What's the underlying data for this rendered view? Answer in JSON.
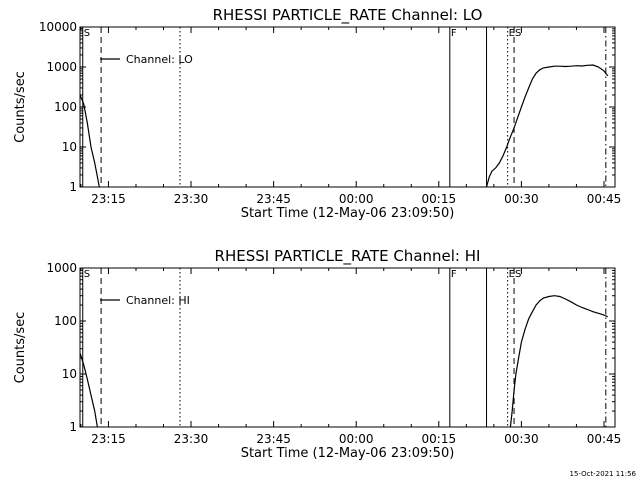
{
  "footer": {
    "timestamp": "15-Oct-2021 11:56"
  },
  "chart_data": [
    {
      "type": "line",
      "title": "RHESSI PARTICLE_RATE Channel: LO",
      "xlabel": "Start Time (12-May-06 23:09:50)",
      "ylabel": "Counts/sec",
      "y_scale": "log",
      "ylim": [
        1,
        10000
      ],
      "xlim": [
        "23:09:50",
        "00:47:00"
      ],
      "x_ticks": [
        "23:15",
        "23:30",
        "23:45",
        "00:00",
        "00:15",
        "00:30",
        "00:45"
      ],
      "y_ticks": [
        "1",
        "10",
        "100",
        "1000",
        "10000"
      ],
      "legend": {
        "position": "top-left",
        "entries": [
          "Channel: LO"
        ]
      },
      "markers": [
        {
          "label": "S",
          "time": "23:10:20",
          "style": "solid"
        },
        {
          "label": "",
          "time": "23:13:40",
          "style": "dashed"
        },
        {
          "label": "",
          "time": "23:28:00",
          "style": "dotted"
        },
        {
          "label": "F",
          "time": "00:17:00",
          "style": "solid"
        },
        {
          "label": "",
          "time": "00:23:40",
          "style": "solid"
        },
        {
          "label": "E",
          "time": "00:27:30",
          "style": "dotted"
        },
        {
          "label": "S",
          "time": "00:28:40",
          "style": "dashed"
        },
        {
          "label": "",
          "time": "00:45:20",
          "style": "dashdot"
        }
      ],
      "series": [
        {
          "name": "Channel: LO",
          "segments": [
            {
              "x": [
                "23:09:50",
                "23:10:30",
                "23:11:10",
                "23:11:50",
                "23:12:30",
                "23:13:00",
                "23:13:20"
              ],
              "y": [
                200,
                120,
                40,
                10,
                4,
                1.8,
                1
              ]
            },
            {
              "x": [
                "00:23:40",
                "00:24:10",
                "00:24:40",
                "00:25:20",
                "00:26:00",
                "00:26:40",
                "00:27:20",
                "00:28:00",
                "00:28:40",
                "00:29:20",
                "00:30:00",
                "00:30:40",
                "00:31:20",
                "00:32:00",
                "00:32:40",
                "00:33:20",
                "00:34:00",
                "00:35:00",
                "00:36:00",
                "00:37:00",
                "00:38:00",
                "00:39:00",
                "00:40:00",
                "00:41:00",
                "00:42:00",
                "00:43:00",
                "00:44:00",
                "00:45:00",
                "00:45:40"
              ],
              "y": [
                1,
                1.8,
                2.5,
                3,
                4,
                6,
                10,
                18,
                30,
                55,
                100,
                180,
                300,
                500,
                700,
                850,
                950,
                1000,
                1050,
                1050,
                1030,
                1050,
                1080,
                1060,
                1100,
                1120,
                1000,
                800,
                600
              ]
            }
          ]
        }
      ]
    },
    {
      "type": "line",
      "title": "RHESSI PARTICLE_RATE Channel: HI",
      "xlabel": "Start Time (12-May-06 23:09:50)",
      "ylabel": "Counts/sec",
      "y_scale": "log",
      "ylim": [
        1,
        1000
      ],
      "xlim": [
        "23:09:50",
        "00:47:00"
      ],
      "x_ticks": [
        "23:15",
        "23:30",
        "23:45",
        "00:00",
        "00:15",
        "00:30",
        "00:45"
      ],
      "y_ticks": [
        "1",
        "10",
        "100",
        "1000"
      ],
      "legend": {
        "position": "top-left",
        "entries": [
          "Channel: HI"
        ]
      },
      "markers": [
        {
          "label": "S",
          "time": "23:10:20",
          "style": "solid"
        },
        {
          "label": "",
          "time": "23:13:40",
          "style": "dashed"
        },
        {
          "label": "",
          "time": "23:28:00",
          "style": "dotted"
        },
        {
          "label": "F",
          "time": "00:17:00",
          "style": "solid"
        },
        {
          "label": "",
          "time": "00:23:40",
          "style": "solid"
        },
        {
          "label": "E",
          "time": "00:27:30",
          "style": "dotted"
        },
        {
          "label": "S",
          "time": "00:28:40",
          "style": "dashed"
        },
        {
          "label": "",
          "time": "00:45:20",
          "style": "dashdot"
        }
      ],
      "series": [
        {
          "name": "Channel: HI",
          "segments": [
            {
              "x": [
                "23:09:50",
                "23:10:30",
                "23:11:10",
                "23:11:50",
                "23:12:30",
                "23:13:00"
              ],
              "y": [
                25,
                15,
                8,
                4,
                2,
                1
              ]
            },
            {
              "x": [
                "00:28:00",
                "00:28:20",
                "00:28:40",
                "00:29:00",
                "00:29:30",
                "00:30:00",
                "00:30:40",
                "00:31:20",
                "00:32:00",
                "00:32:40",
                "00:33:20",
                "00:34:00",
                "00:35:00",
                "00:36:00",
                "00:37:00",
                "00:38:00",
                "00:39:00",
                "00:40:00",
                "00:41:00",
                "00:42:00",
                "00:43:00",
                "00:44:00",
                "00:45:00",
                "00:45:40"
              ],
              "y": [
                1,
                2,
                5,
                10,
                20,
                40,
                70,
                110,
                150,
                200,
                240,
                270,
                290,
                300,
                290,
                260,
                230,
                200,
                180,
                165,
                150,
                140,
                130,
                120
              ]
            }
          ]
        }
      ]
    }
  ]
}
